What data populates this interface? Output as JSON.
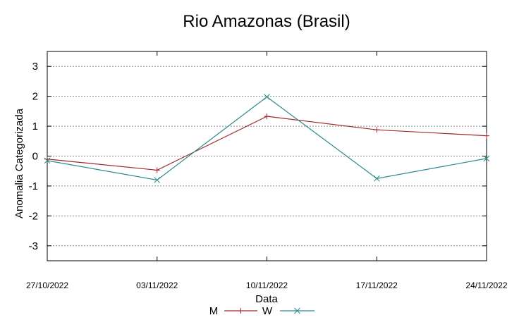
{
  "chart_data": {
    "type": "line",
    "title": "Rio Amazonas (Brasil)",
    "xlabel": "Data",
    "ylabel": "Anomalia Categorizada",
    "categories": [
      "27/10/2022",
      "03/11/2022",
      "10/11/2022",
      "17/11/2022",
      "24/11/2022"
    ],
    "yticks": [
      3,
      2,
      1,
      0,
      -1,
      -2,
      -3
    ],
    "ytick_labels": [
      "3",
      "2",
      "1",
      "0",
      "-1",
      "-2",
      "-3"
    ],
    "ylim": [
      -3.5,
      3.5
    ],
    "grid": true,
    "legend_position": "bottom-center",
    "series": [
      {
        "name": "M",
        "color": "#a0282a",
        "marker": "plus",
        "values": [
          -0.1,
          -0.47,
          1.33,
          0.88,
          0.68
        ]
      },
      {
        "name": "W",
        "color": "#2a8a8c",
        "marker": "x",
        "values": [
          -0.15,
          -0.8,
          1.98,
          -0.75,
          -0.08
        ]
      }
    ]
  }
}
